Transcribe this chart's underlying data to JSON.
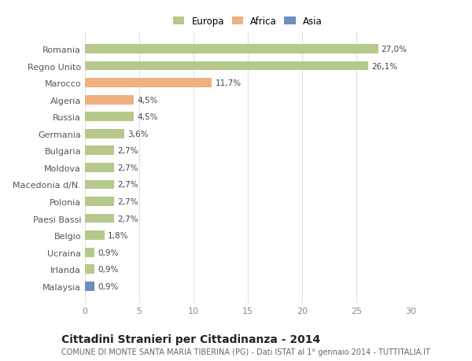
{
  "categories": [
    "Malaysia",
    "Irlanda",
    "Ucraina",
    "Belgio",
    "Paesi Bassi",
    "Polonia",
    "Macedonia d/N.",
    "Moldova",
    "Bulgaria",
    "Germania",
    "Russia",
    "Algeria",
    "Marocco",
    "Regno Unito",
    "Romania"
  ],
  "values": [
    0.9,
    0.9,
    0.9,
    1.8,
    2.7,
    2.7,
    2.7,
    2.7,
    2.7,
    3.6,
    4.5,
    4.5,
    11.7,
    26.1,
    27.0
  ],
  "colors": [
    "#6b8fbf",
    "#b5c98a",
    "#b5c98a",
    "#b5c98a",
    "#b5c98a",
    "#b5c98a",
    "#b5c98a",
    "#b5c98a",
    "#b5c98a",
    "#b5c98a",
    "#b5c98a",
    "#f0b080",
    "#f0b080",
    "#b5c98a",
    "#b5c98a"
  ],
  "labels": [
    "0,9%",
    "0,9%",
    "0,9%",
    "1,8%",
    "2,7%",
    "2,7%",
    "2,7%",
    "2,7%",
    "2,7%",
    "3,6%",
    "4,5%",
    "4,5%",
    "11,7%",
    "26,1%",
    "27,0%"
  ],
  "legend": [
    {
      "label": "Europa",
      "color": "#b5c98a"
    },
    {
      "label": "Africa",
      "color": "#f0b080"
    },
    {
      "label": "Asia",
      "color": "#6b8fbf"
    }
  ],
  "xlim": [
    0,
    30
  ],
  "xticks": [
    0,
    5,
    10,
    15,
    20,
    25,
    30
  ],
  "title": "Cittadini Stranieri per Cittadinanza - 2014",
  "subtitle": "COMUNE DI MONTE SANTA MARIA TIBERINA (PG) - Dati ISTAT al 1° gennaio 2014 - TUTTITALIA.IT",
  "background_color": "#ffffff",
  "grid_color": "#e0e0e0",
  "title_fontsize": 10,
  "subtitle_fontsize": 7,
  "bar_label_fontsize": 7.5,
  "ytick_fontsize": 8,
  "xtick_fontsize": 8
}
